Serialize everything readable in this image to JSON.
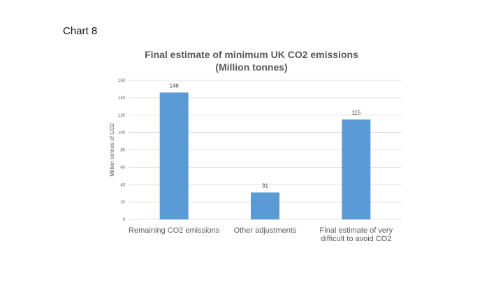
{
  "slide": {
    "label": "Chart 8"
  },
  "chart_data": {
    "type": "bar",
    "title": "Final estimate of minimum UK CO2 emissions",
    "subtitle": "(Million tonnes)",
    "xlabel": "",
    "ylabel": "Million tonnes of CO2",
    "ylim": [
      0,
      160
    ],
    "yticks": [
      0,
      20,
      40,
      60,
      80,
      100,
      120,
      140,
      160
    ],
    "grid": true,
    "legend": "none",
    "categories": [
      [
        "Remaining CO2 emissions"
      ],
      [
        "Other adjustments"
      ],
      [
        "Final estimate of very",
        "difficult to avoid CO2"
      ]
    ],
    "values": [
      146,
      31,
      115
    ],
    "data_labels": [
      "146",
      "31",
      "115"
    ],
    "bar_color": "#5B9BD5",
    "grid_color": "#D9D9D9"
  }
}
